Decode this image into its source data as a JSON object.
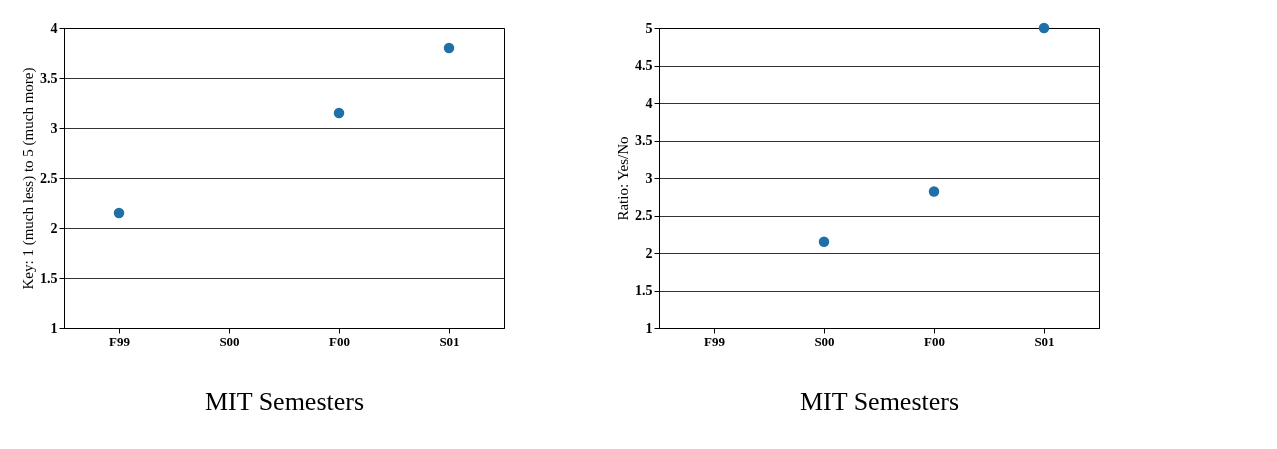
{
  "chart_data": [
    {
      "type": "scatter",
      "xlabel": "MIT Semesters",
      "ylabel": "Key: 1 (much less) to 5 (much more)",
      "categories": [
        "F99",
        "S00",
        "F00",
        "S01"
      ],
      "series": [
        {
          "color": "#1f6fa8",
          "values": [
            2.15,
            null,
            3.15,
            3.8
          ]
        }
      ],
      "ylim": [
        1,
        4
      ],
      "yticks": [
        1,
        1.5,
        2,
        2.5,
        3,
        3.5,
        4
      ],
      "grid": "y",
      "marker": "circle"
    },
    {
      "type": "scatter",
      "xlabel": "MIT Semesters",
      "ylabel": "Ratio: Yes/No",
      "categories": [
        "F99",
        "S00",
        "F00",
        "S01"
      ],
      "series": [
        {
          "color": "#1f6fa8",
          "values": [
            null,
            2.15,
            2.82,
            5.0
          ]
        }
      ],
      "ylim": [
        1,
        5
      ],
      "yticks": [
        1,
        1.5,
        2,
        2.5,
        3,
        3.5,
        4,
        4.5,
        5
      ],
      "grid": "y",
      "marker": "circle"
    }
  ]
}
